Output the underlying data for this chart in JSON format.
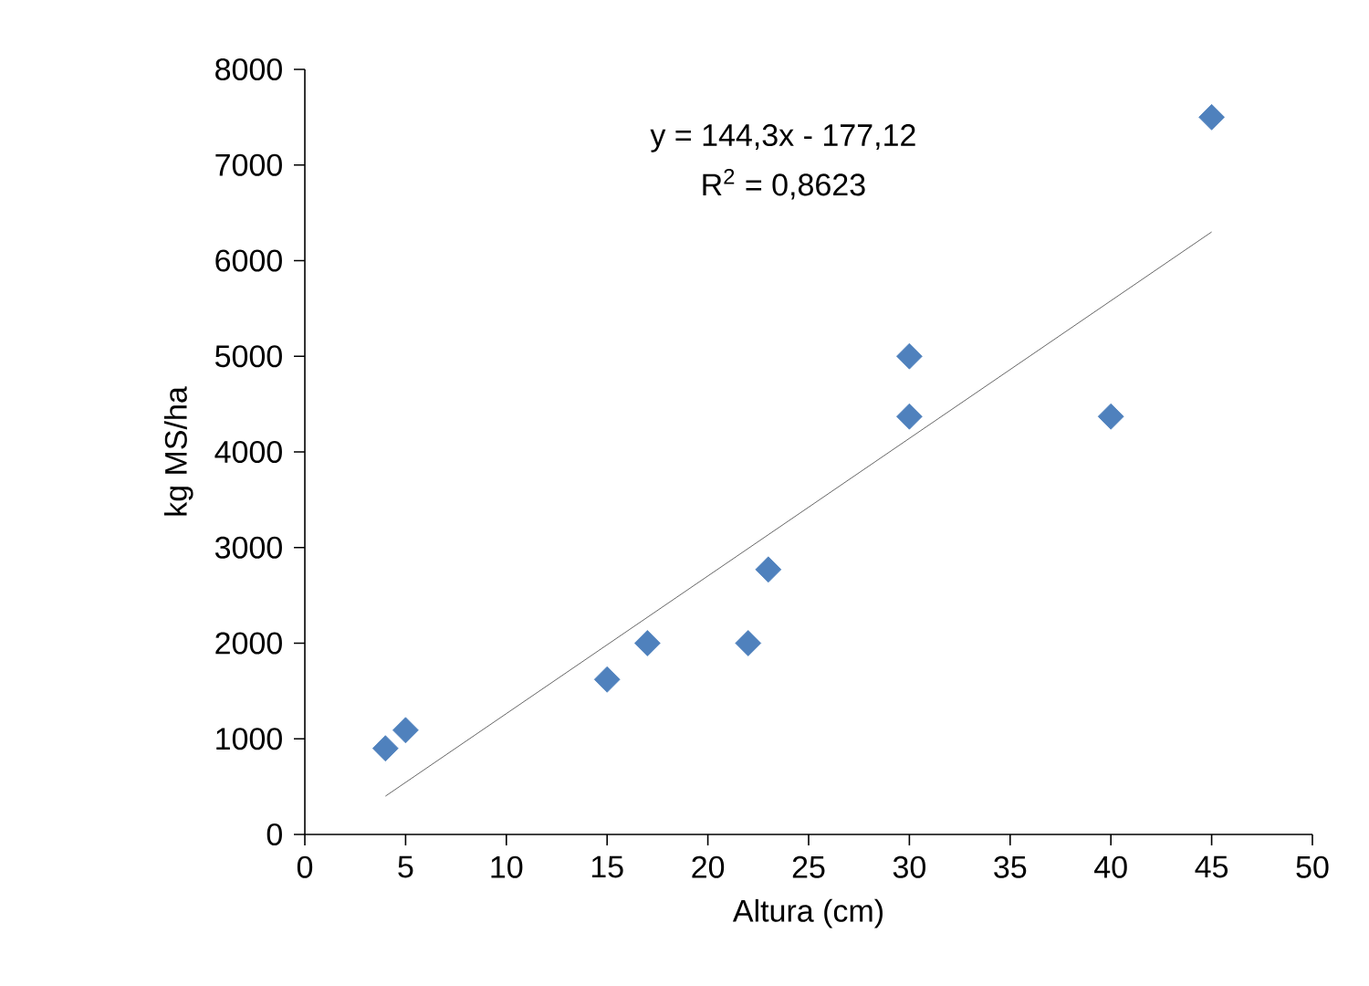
{
  "chart_data": {
    "type": "scatter",
    "xlabel": "Altura (cm)",
    "ylabel": "kg MS/ha",
    "series": [
      {
        "color": "#4f81bd",
        "marker": "diamond",
        "x": [
          4,
          5,
          15,
          17,
          22,
          23,
          30,
          30,
          40,
          45
        ],
        "values": [
          900,
          1090,
          1620,
          2000,
          2000,
          2770,
          4370,
          5000,
          4370,
          7500
        ]
      },
      {
        "type": "line",
        "color": "#404040",
        "marker": "none",
        "x": [
          4,
          45
        ],
        "values": [
          400,
          6300
        ]
      }
    ],
    "annotations": [
      "y = 144,3x - 177,12",
      "R$^{2}$ = 0,8623"
    ],
    "xlim": [
      0,
      50
    ],
    "xticks": [
      0,
      5,
      10,
      15,
      20,
      25,
      30,
      35,
      40,
      45,
      50
    ],
    "ylim": [
      0,
      8000
    ],
    "yticks": [
      0,
      1000,
      2000,
      3000,
      4000,
      5000,
      6000,
      7000,
      8000
    ],
    "grid": false
  }
}
